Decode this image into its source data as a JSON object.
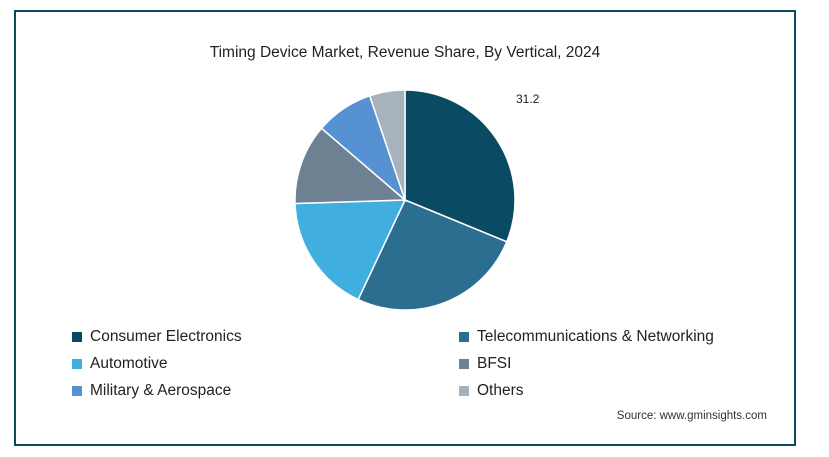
{
  "chart_data": {
    "type": "pie",
    "title": "Timing Device Market, Revenue Share, By Vertical, 2024",
    "slices": [
      {
        "label": "Consumer Electronics",
        "value": 31.2,
        "color": "#0b4a63",
        "show_label": "31.2%"
      },
      {
        "label": "Telecommunications & Networking",
        "value": 25.8,
        "color": "#2c6e8f",
        "show_label": ""
      },
      {
        "label": "Automotive",
        "value": 17.5,
        "color": "#41aee0",
        "show_label": ""
      },
      {
        "label": "BFSI",
        "value": 11.8,
        "color": "#6e8193",
        "show_label": ""
      },
      {
        "label": "Military & Aerospace",
        "value": 8.5,
        "color": "#5591d3",
        "show_label": ""
      },
      {
        "label": "Others",
        "value": 5.2,
        "color": "#a7b2bc",
        "show_label": ""
      }
    ],
    "legend_placement": "bottom"
  },
  "source": "Source: www.gminsights.com"
}
